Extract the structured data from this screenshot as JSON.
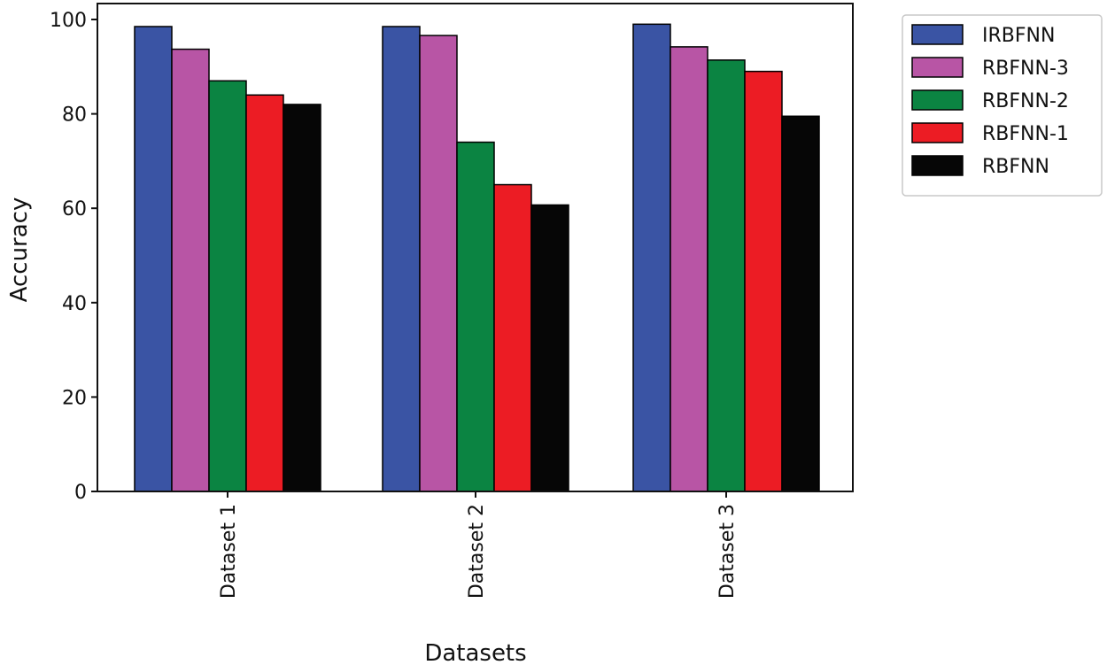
{
  "chart_data": {
    "type": "bar",
    "title": "",
    "xlabel": "Datasets",
    "ylabel": "Accuracy",
    "ylim": [
      0,
      100
    ],
    "yticks": [
      0,
      20,
      40,
      60,
      80,
      100
    ],
    "categories": [
      "Dataset 1",
      "Dataset 2",
      "Dataset 3"
    ],
    "series": [
      {
        "name": "IRBFNN",
        "color": "#3a54a4",
        "values": [
          98.5,
          98.5,
          99
        ]
      },
      {
        "name": "RBFNN-3",
        "color": "#b855a5",
        "values": [
          93.7,
          96.6,
          94.2
        ]
      },
      {
        "name": "RBFNN-2",
        "color": "#0b8442",
        "values": [
          87,
          74,
          91.4
        ]
      },
      {
        "name": "RBFNN-1",
        "color": "#ec1c24",
        "values": [
          84,
          65,
          89
        ]
      },
      {
        "name": "RBFNN",
        "color": "#060606",
        "values": [
          82,
          60.7,
          79.5
        ]
      }
    ],
    "grid": false,
    "legend": "outside-top-right"
  }
}
